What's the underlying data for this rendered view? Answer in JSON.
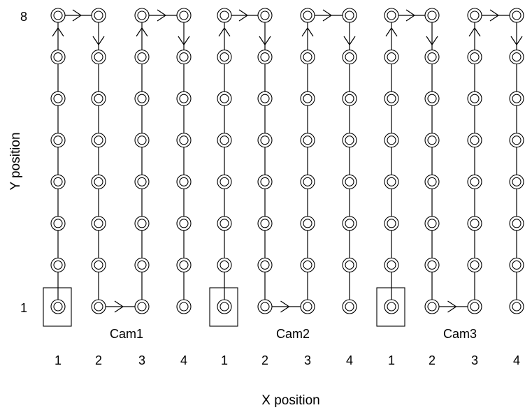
{
  "diagram": {
    "y_axis_title": "Y position",
    "x_axis_title": "X position",
    "y_tick_labels": {
      "top": "8",
      "bottom": "1"
    },
    "line_color": "#000000",
    "background": "#ffffff",
    "cameras": [
      {
        "label": "Cam1",
        "x_tick_labels": [
          "1",
          "2",
          "3",
          "4"
        ],
        "start_position": {
          "x": 1,
          "y": 1
        }
      },
      {
        "label": "Cam2",
        "x_tick_labels": [
          "1",
          "2",
          "3",
          "4"
        ],
        "start_position": {
          "x": 1,
          "y": 1
        }
      },
      {
        "label": "Cam3",
        "x_tick_labels": [
          "1",
          "2",
          "3",
          "4"
        ],
        "start_position": {
          "x": 1,
          "y": 1
        }
      }
    ],
    "grid": {
      "columns_per_camera": 4,
      "rows": 8,
      "node_marker": "double-circle"
    },
    "scan_path_per_camera": [
      {
        "x": 1,
        "y": 1
      },
      {
        "x": 1,
        "y": 8
      },
      {
        "x": 2,
        "y": 8
      },
      {
        "x": 2,
        "y": 1
      },
      {
        "x": 3,
        "y": 1
      },
      {
        "x": 3,
        "y": 8
      },
      {
        "x": 4,
        "y": 8
      },
      {
        "x": 4,
        "y": 1
      }
    ]
  }
}
